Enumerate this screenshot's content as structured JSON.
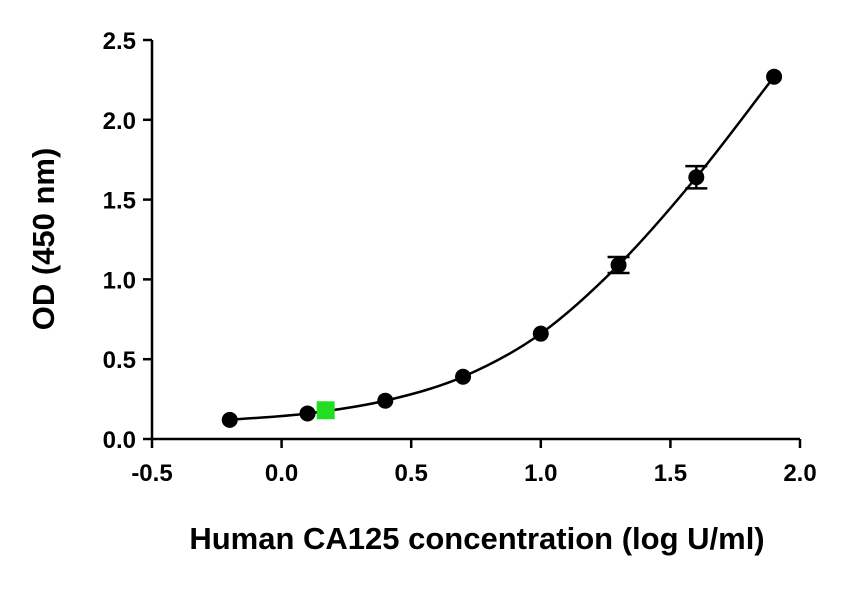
{
  "chart_data": {
    "type": "scatter",
    "title": "",
    "xlabel": "Human CA125 concentration (log U/ml)",
    "ylabel": "OD (450 nm)",
    "xlim": [
      -0.5,
      2.0
    ],
    "ylim": [
      0.0,
      2.5
    ],
    "x_ticks": [
      "-0.5",
      "0.0",
      "0.5",
      "1.0",
      "1.5",
      "2.0"
    ],
    "y_ticks": [
      "0.0",
      "0.5",
      "1.0",
      "1.5",
      "2.0",
      "2.5"
    ],
    "grid": false,
    "legend": "none",
    "series": [
      {
        "marker": "circle",
        "color": "#000000",
        "fit_curve": true,
        "points": [
          {
            "x": -0.2,
            "y": 0.12,
            "err": 0.01
          },
          {
            "x": 0.1,
            "y": 0.16,
            "err": 0.01
          },
          {
            "x": 0.4,
            "y": 0.24,
            "err": 0.01
          },
          {
            "x": 0.7,
            "y": 0.39,
            "err": 0.01
          },
          {
            "x": 1.0,
            "y": 0.66,
            "err": 0.01
          },
          {
            "x": 1.3,
            "y": 1.09,
            "err": 0.05
          },
          {
            "x": 1.6,
            "y": 1.64,
            "err": 0.07
          },
          {
            "x": 1.9,
            "y": 2.27,
            "err": 0.01
          }
        ]
      },
      {
        "marker": "square",
        "color": "#22dd22",
        "fit_curve": false,
        "points": [
          {
            "x": 0.17,
            "y": 0.18
          }
        ]
      }
    ]
  }
}
